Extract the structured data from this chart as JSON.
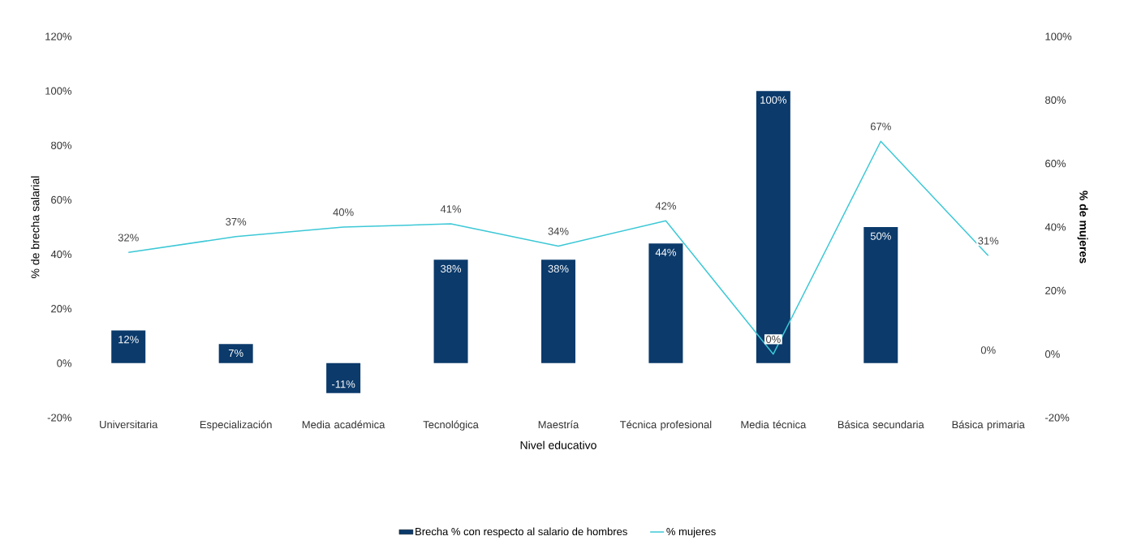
{
  "chart_data": {
    "type": "bar",
    "categories": [
      "Universitaria",
      "Especialización",
      "Media académica",
      "Tecnológica",
      "Maestría",
      "Técnica profesional",
      "Media técnica",
      "Básica secundaria",
      "Básica primaria"
    ],
    "series": [
      {
        "name": "Brecha % con respecto al salario de hombres",
        "color": "#0b3a6b",
        "values": [
          12,
          7,
          -11,
          38,
          38,
          44,
          100,
          50,
          0
        ],
        "value_labels": [
          "12%",
          "7%",
          "-11%",
          "38%",
          "38%",
          "44%",
          "100%",
          "50%",
          "0%"
        ]
      },
      {
        "name": "% mujeres",
        "type": "line",
        "axis": "y2",
        "color": "#3cc8d6",
        "values": [
          32,
          37,
          40,
          41,
          34,
          42,
          0,
          67,
          31
        ],
        "value_labels": [
          "32%",
          "37%",
          "40%",
          "41%",
          "34%",
          "42%",
          "0%",
          "67%",
          "31%"
        ]
      }
    ],
    "xlabel": "Nivel educativo",
    "ylabel": "% de brecha salarial",
    "y2label": "% de mujeres",
    "ylim": [
      -20,
      120
    ],
    "yticks": [
      {
        "value": -20,
        "label": "-20%"
      },
      {
        "value": 0,
        "label": "0%"
      },
      {
        "value": 20,
        "label": "20%"
      },
      {
        "value": 40,
        "label": "40%"
      },
      {
        "value": 60,
        "label": "60%"
      },
      {
        "value": 80,
        "label": "80%"
      },
      {
        "value": 100,
        "label": "100%"
      },
      {
        "value": 120,
        "label": "120%"
      }
    ],
    "y2lim": [
      -20,
      100
    ],
    "y2ticks": [
      {
        "value": -20,
        "label": "-20%"
      },
      {
        "value": 0,
        "label": "0%"
      },
      {
        "value": 20,
        "label": "20%"
      },
      {
        "value": 40,
        "label": "40%"
      },
      {
        "value": 60,
        "label": "60%"
      },
      {
        "value": 80,
        "label": "80%"
      },
      {
        "value": 100,
        "label": "100%"
      }
    ],
    "legend": "bottom",
    "marker": "none"
  }
}
